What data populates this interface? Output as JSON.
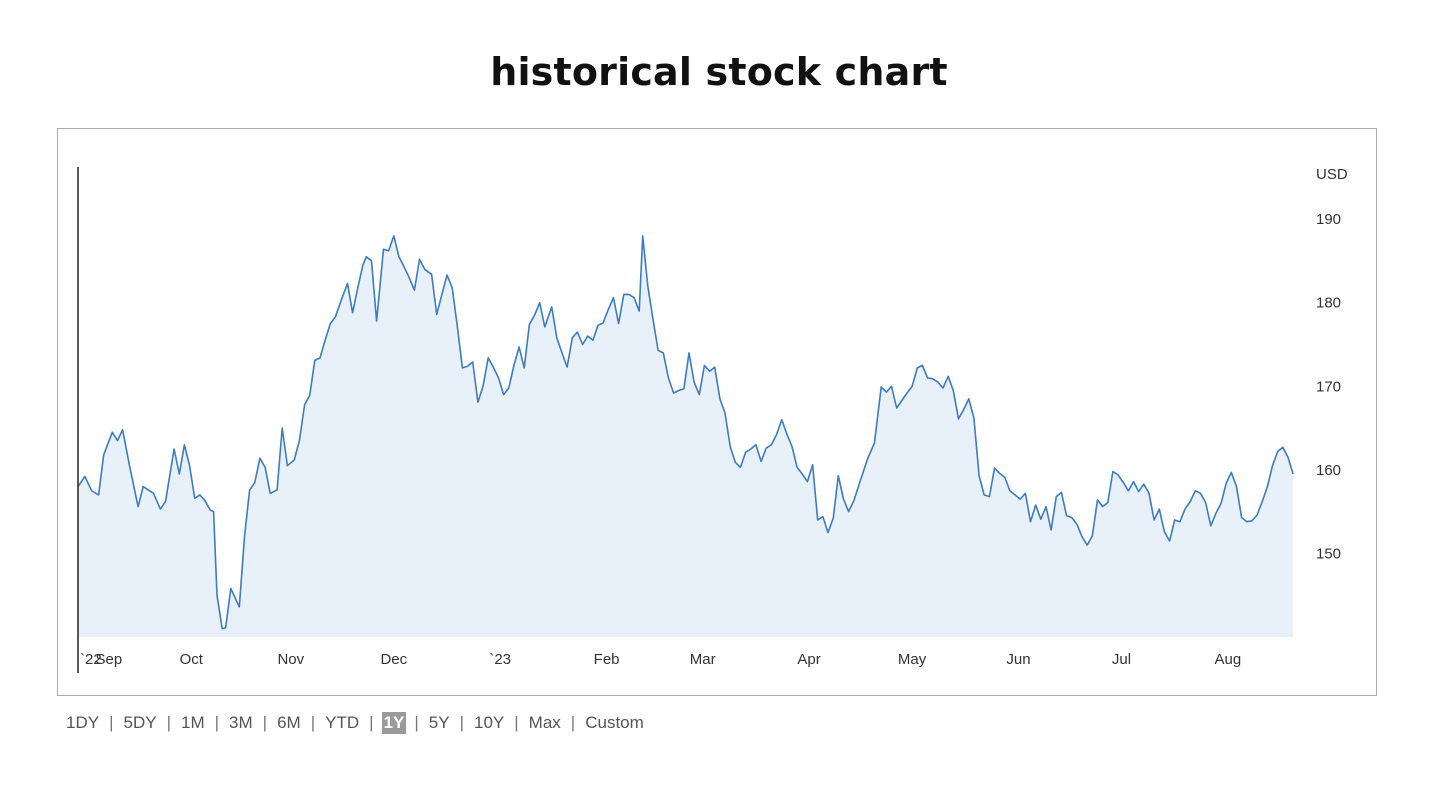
{
  "page": {
    "title": "historical stock chart"
  },
  "range_selector": {
    "options": [
      "1DY",
      "5DY",
      "1M",
      "3M",
      "6M",
      "YTD",
      "1Y",
      "5Y",
      "10Y",
      "Max",
      "Custom"
    ],
    "selected": "1Y",
    "separator": "|"
  },
  "chart_data": {
    "type": "area",
    "title": "",
    "xlabel": "",
    "ylabel": "USD",
    "currency_label": "USD",
    "ylim": [
      140,
      196
    ],
    "y_ticks": [
      150,
      160,
      170,
      180,
      190
    ],
    "y_axis_position": "right",
    "grid": false,
    "line_color": "#3b7cc4",
    "fill_color": "#e8f0fa",
    "x_ticks": [
      {
        "label": "`22",
        "t": 0
      },
      {
        "label": "Sep",
        "t": 9
      },
      {
        "label": "Oct",
        "t": 33
      },
      {
        "label": "Nov",
        "t": 62
      },
      {
        "label": "Dec",
        "t": 92
      },
      {
        "label": "`23",
        "t": 123
      },
      {
        "label": "Feb",
        "t": 154
      },
      {
        "label": "Mar",
        "t": 182
      },
      {
        "label": "Apr",
        "t": 213
      },
      {
        "label": "May",
        "t": 243
      },
      {
        "label": "Jun",
        "t": 274
      },
      {
        "label": "Jul",
        "t": 304
      },
      {
        "label": "Aug",
        "t": 335
      }
    ],
    "x_range_days": [
      0,
      356
    ],
    "series": [
      {
        "name": "",
        "points": [
          [
            0,
            158.0
          ],
          [
            2,
            159.2
          ],
          [
            4,
            157.5
          ],
          [
            6,
            157.0
          ],
          [
            7.5,
            161.8
          ],
          [
            10,
            164.5
          ],
          [
            11.5,
            163.5
          ],
          [
            13,
            164.8
          ],
          [
            15,
            160.5
          ],
          [
            17.5,
            155.6
          ],
          [
            19,
            158.0
          ],
          [
            22,
            157.2
          ],
          [
            24,
            155.3
          ],
          [
            25.5,
            156.2
          ],
          [
            28,
            162.5
          ],
          [
            29.5,
            159.5
          ],
          [
            31,
            163.0
          ],
          [
            32.5,
            160.5
          ],
          [
            34,
            156.6
          ],
          [
            35.5,
            157.0
          ],
          [
            37,
            156.3
          ],
          [
            38.5,
            155.2
          ],
          [
            39.5,
            155.0
          ],
          [
            40.5,
            145.0
          ],
          [
            42,
            141.0
          ],
          [
            43,
            141.1
          ],
          [
            44.5,
            145.8
          ],
          [
            47,
            143.6
          ],
          [
            48.5,
            152.0
          ],
          [
            50,
            157.6
          ],
          [
            51.5,
            158.5
          ],
          [
            53,
            161.4
          ],
          [
            54.5,
            160.3
          ],
          [
            56,
            157.2
          ],
          [
            58,
            157.6
          ],
          [
            59.5,
            165.0
          ],
          [
            61,
            160.5
          ],
          [
            63,
            161.2
          ],
          [
            64.5,
            163.5
          ],
          [
            66,
            167.8
          ],
          [
            67.5,
            168.9
          ],
          [
            69,
            173.1
          ],
          [
            70.5,
            173.4
          ],
          [
            72,
            175.5
          ],
          [
            73.5,
            177.5
          ],
          [
            75,
            178.3
          ],
          [
            76.5,
            180.1
          ],
          [
            78.5,
            182.3
          ],
          [
            80,
            178.8
          ],
          [
            81.5,
            181.8
          ],
          [
            83,
            184.5
          ],
          [
            84,
            185.5
          ],
          [
            85.5,
            185.0
          ],
          [
            87,
            177.8
          ],
          [
            89,
            186.4
          ],
          [
            90.5,
            186.2
          ],
          [
            92,
            188.0
          ],
          [
            93.5,
            185.5
          ],
          [
            95,
            184.3
          ],
          [
            96.5,
            183.0
          ],
          [
            98,
            181.5
          ],
          [
            99.5,
            185.2
          ],
          [
            101,
            184.0
          ],
          [
            103,
            183.4
          ],
          [
            104.5,
            178.6
          ],
          [
            106,
            181.0
          ],
          [
            107.5,
            183.3
          ],
          [
            109,
            181.8
          ],
          [
            110.5,
            177.2
          ],
          [
            112,
            172.2
          ],
          [
            113.5,
            172.4
          ],
          [
            115,
            172.9
          ],
          [
            116.5,
            168.1
          ],
          [
            118,
            170.0
          ],
          [
            119.5,
            173.4
          ],
          [
            121,
            172.3
          ],
          [
            122.5,
            171.0
          ],
          [
            124,
            169.0
          ],
          [
            125.5,
            169.8
          ],
          [
            127,
            172.5
          ],
          [
            128.5,
            174.7
          ],
          [
            130,
            172.2
          ],
          [
            131.5,
            177.4
          ],
          [
            133,
            178.5
          ],
          [
            134.5,
            180.0
          ],
          [
            136,
            177.1
          ],
          [
            138,
            179.5
          ],
          [
            139.5,
            175.8
          ],
          [
            141,
            174.0
          ],
          [
            142.5,
            172.3
          ],
          [
            144,
            175.8
          ],
          [
            145.5,
            176.5
          ],
          [
            147,
            175.0
          ],
          [
            148.5,
            176.0
          ],
          [
            150,
            175.5
          ],
          [
            151.5,
            177.3
          ],
          [
            153,
            177.6
          ],
          [
            154.5,
            179.2
          ],
          [
            156,
            180.6
          ],
          [
            157.5,
            177.5
          ],
          [
            159,
            181.0
          ],
          [
            160.5,
            181.0
          ],
          [
            162,
            180.6
          ],
          [
            163.5,
            179.0
          ],
          [
            164.5,
            188.0
          ],
          [
            166,
            182.0
          ],
          [
            167.5,
            178.0
          ],
          [
            169,
            174.3
          ],
          [
            170.5,
            174.0
          ],
          [
            172,
            171.0
          ],
          [
            173.5,
            169.2
          ],
          [
            175,
            169.5
          ],
          [
            176.5,
            169.7
          ],
          [
            178,
            174.0
          ],
          [
            179.5,
            170.5
          ],
          [
            181,
            169.0
          ],
          [
            182.5,
            172.5
          ],
          [
            184,
            171.8
          ],
          [
            185.5,
            172.3
          ],
          [
            187,
            168.5
          ],
          [
            188.5,
            166.8
          ],
          [
            190,
            162.8
          ],
          [
            191.5,
            160.9
          ],
          [
            193,
            160.3
          ],
          [
            194.5,
            162.1
          ],
          [
            196,
            162.5
          ],
          [
            197.5,
            163.0
          ],
          [
            199,
            161.0
          ],
          [
            200.5,
            162.6
          ],
          [
            202,
            163.0
          ],
          [
            203.5,
            164.2
          ],
          [
            205,
            166.0
          ],
          [
            206.5,
            164.3
          ],
          [
            208,
            162.8
          ],
          [
            209.5,
            160.3
          ],
          [
            211,
            159.5
          ],
          [
            212.5,
            158.6
          ],
          [
            214,
            160.6
          ],
          [
            215.5,
            154.0
          ],
          [
            217,
            154.4
          ],
          [
            218.5,
            152.5
          ],
          [
            220,
            154.2
          ],
          [
            221.5,
            159.3
          ],
          [
            223,
            156.5
          ],
          [
            224.5,
            155.0
          ],
          [
            226,
            156.3
          ],
          [
            228,
            158.8
          ],
          [
            230,
            161.3
          ],
          [
            232,
            163.2
          ],
          [
            234,
            169.9
          ],
          [
            235.5,
            169.3
          ],
          [
            237,
            170.0
          ],
          [
            238.5,
            167.4
          ],
          [
            240,
            168.3
          ],
          [
            241.5,
            169.2
          ],
          [
            243,
            170.0
          ],
          [
            244.5,
            172.2
          ],
          [
            246,
            172.5
          ],
          [
            247.5,
            171.0
          ],
          [
            249,
            170.9
          ],
          [
            250.5,
            170.5
          ],
          [
            252,
            169.8
          ],
          [
            253.5,
            171.2
          ],
          [
            255,
            169.5
          ],
          [
            256.5,
            166.1
          ],
          [
            258,
            167.2
          ],
          [
            259.5,
            168.5
          ],
          [
            261,
            166.2
          ],
          [
            262.5,
            159.3
          ],
          [
            264,
            157.0
          ],
          [
            265.5,
            156.8
          ],
          [
            267,
            160.2
          ],
          [
            268.5,
            159.6
          ],
          [
            270,
            159.1
          ],
          [
            271.5,
            157.5
          ],
          [
            273,
            157.0
          ],
          [
            274.5,
            156.5
          ],
          [
            276,
            157.2
          ],
          [
            277.5,
            153.8
          ],
          [
            279,
            155.8
          ],
          [
            280.5,
            154.1
          ],
          [
            282,
            155.6
          ],
          [
            283.5,
            152.8
          ],
          [
            285,
            156.8
          ],
          [
            286.5,
            157.3
          ],
          [
            288,
            154.5
          ],
          [
            289.5,
            154.3
          ],
          [
            291,
            153.5
          ],
          [
            292.5,
            152.0
          ],
          [
            294,
            151.0
          ],
          [
            295.5,
            152.1
          ],
          [
            297,
            156.4
          ],
          [
            298.5,
            155.6
          ],
          [
            300,
            156.1
          ],
          [
            301.5,
            159.8
          ],
          [
            303,
            159.4
          ],
          [
            304.5,
            158.5
          ],
          [
            306,
            157.5
          ],
          [
            307.5,
            158.6
          ],
          [
            309,
            157.4
          ],
          [
            310.5,
            158.3
          ],
          [
            312,
            157.2
          ],
          [
            313.5,
            154.0
          ],
          [
            315,
            155.3
          ],
          [
            316.5,
            152.6
          ],
          [
            318,
            151.5
          ],
          [
            319.5,
            154.0
          ],
          [
            321,
            153.8
          ],
          [
            322.5,
            155.3
          ],
          [
            324,
            156.2
          ],
          [
            325.5,
            157.5
          ],
          [
            327,
            157.2
          ],
          [
            328.5,
            156.1
          ],
          [
            330,
            153.3
          ],
          [
            331.5,
            154.8
          ],
          [
            333,
            156.0
          ],
          [
            334.5,
            158.4
          ],
          [
            336,
            159.7
          ],
          [
            337.5,
            158.0
          ],
          [
            339,
            154.3
          ],
          [
            340.5,
            153.8
          ],
          [
            342,
            153.9
          ],
          [
            343.5,
            154.6
          ],
          [
            345,
            156.2
          ],
          [
            346.5,
            158.0
          ],
          [
            348,
            160.5
          ],
          [
            349.5,
            162.2
          ],
          [
            351,
            162.7
          ],
          [
            352.5,
            161.5
          ],
          [
            354,
            159.5
          ]
        ]
      }
    ]
  }
}
